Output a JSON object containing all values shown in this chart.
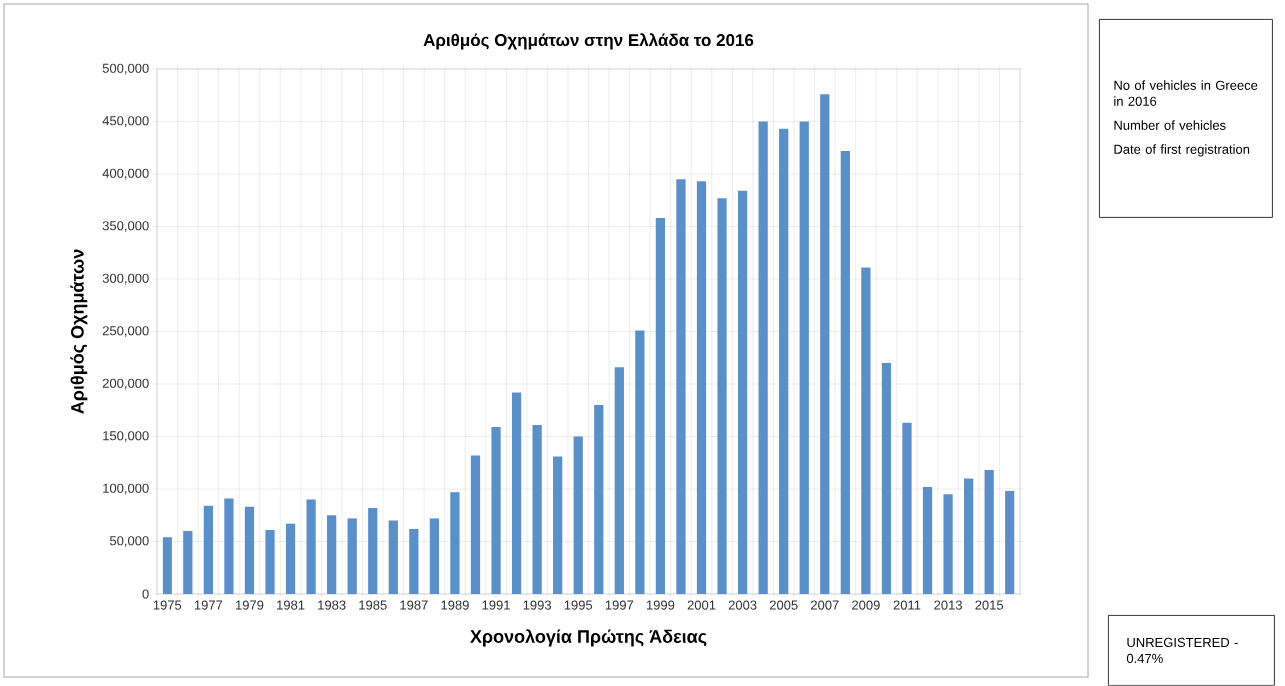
{
  "chart_data": {
    "type": "bar",
    "title": "Αριθμός Οχημάτων στην Ελλάδα το 2016",
    "xlabel": "Χρονολογία Πρώτης Άδειας",
    "ylabel": "Αριθμός Οχημάτων",
    "categories": [
      "1975",
      null,
      "1977",
      null,
      "1979",
      null,
      "1981",
      null,
      "1983",
      null,
      "1985",
      null,
      "1987",
      null,
      "1989",
      null,
      "1991",
      null,
      "1993",
      null,
      "1995",
      null,
      "1997",
      null,
      "1999",
      null,
      "2001",
      null,
      "2003",
      null,
      "2005",
      null,
      "2007",
      null,
      "2009",
      null,
      "2011",
      null,
      "2013",
      null,
      "2015",
      null
    ],
    "values": [
      54000,
      60000,
      84000,
      91000,
      83000,
      61000,
      67000,
      90000,
      75000,
      72000,
      82000,
      70000,
      62000,
      72000,
      97000,
      132000,
      159000,
      192000,
      161000,
      131000,
      150000,
      180000,
      216000,
      251000,
      358000,
      395000,
      393000,
      377000,
      384000,
      450000,
      443000,
      450000,
      476000,
      422000,
      311000,
      220000,
      163000,
      102000,
      95000,
      110000,
      118000,
      98000
    ],
    "color": "#5b8fc8",
    "ylim": [
      0,
      500000
    ],
    "yticks": [
      0,
      {
        "value": 50000,
        "label": "50,000"
      },
      {
        "value": 100000,
        "label": "100,000"
      },
      {
        "value": 150000,
        "label": "150,000"
      },
      {
        "value": 200000,
        "label": "200,000"
      },
      {
        "value": 250000,
        "label": "250,000"
      },
      {
        "value": 300000,
        "label": "300,000"
      },
      {
        "value": 350000,
        "label": "350,000"
      },
      {
        "value": 400000,
        "label": "400,000"
      },
      {
        "value": 450000,
        "label": "450,000"
      },
      {
        "value": 500000,
        "label": "500,000"
      }
    ],
    "grid": true,
    "annotations": [
      "No of vehicles in Greece in 2016",
      "Number of vehicles",
      "Date of first registration",
      "UNREGISTERED - 0.47%"
    ]
  }
}
